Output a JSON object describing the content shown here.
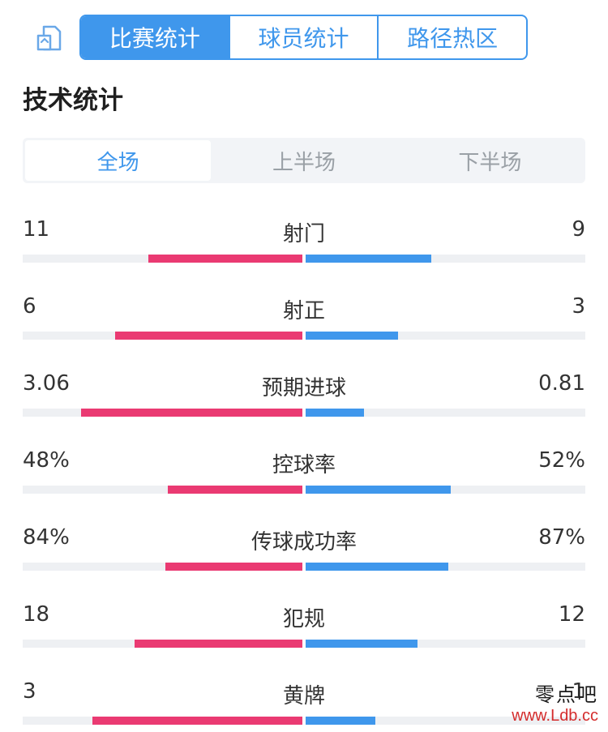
{
  "header": {
    "tabs": [
      {
        "label": "比赛统计",
        "active": true
      },
      {
        "label": "球员统计",
        "active": false
      },
      {
        "label": "路径热区",
        "active": false
      }
    ]
  },
  "section_title": "技术统计",
  "periods": [
    {
      "label": "全场",
      "active": true
    },
    {
      "label": "上半场",
      "active": false
    },
    {
      "label": "下半场",
      "active": false
    }
  ],
  "stats": [
    {
      "label": "射门",
      "home": "11",
      "away": "9",
      "home_ratio": 0.55,
      "away_ratio": 0.45
    },
    {
      "label": "射正",
      "home": "6",
      "away": "3",
      "home_ratio": 0.67,
      "away_ratio": 0.33
    },
    {
      "label": "预期进球",
      "home": "3.06",
      "away": "0.81",
      "home_ratio": 0.79,
      "away_ratio": 0.21
    },
    {
      "label": "控球率",
      "home": "48%",
      "away": "52%",
      "home_ratio": 0.48,
      "away_ratio": 0.52
    },
    {
      "label": "传球成功率",
      "home": "84%",
      "away": "87%",
      "home_ratio": 0.49,
      "away_ratio": 0.51
    },
    {
      "label": "犯规",
      "home": "18",
      "away": "12",
      "home_ratio": 0.6,
      "away_ratio": 0.4
    },
    {
      "label": "黄牌",
      "home": "3",
      "away": "1",
      "home_ratio": 0.75,
      "away_ratio": 0.25
    }
  ],
  "colors": {
    "accent": "#3f97ec",
    "home": "#ea3a72",
    "away": "#3f97ec",
    "track": "#eef0f3"
  },
  "watermark": {
    "text": "零点吧",
    "url": "www.Ldb.cc"
  }
}
